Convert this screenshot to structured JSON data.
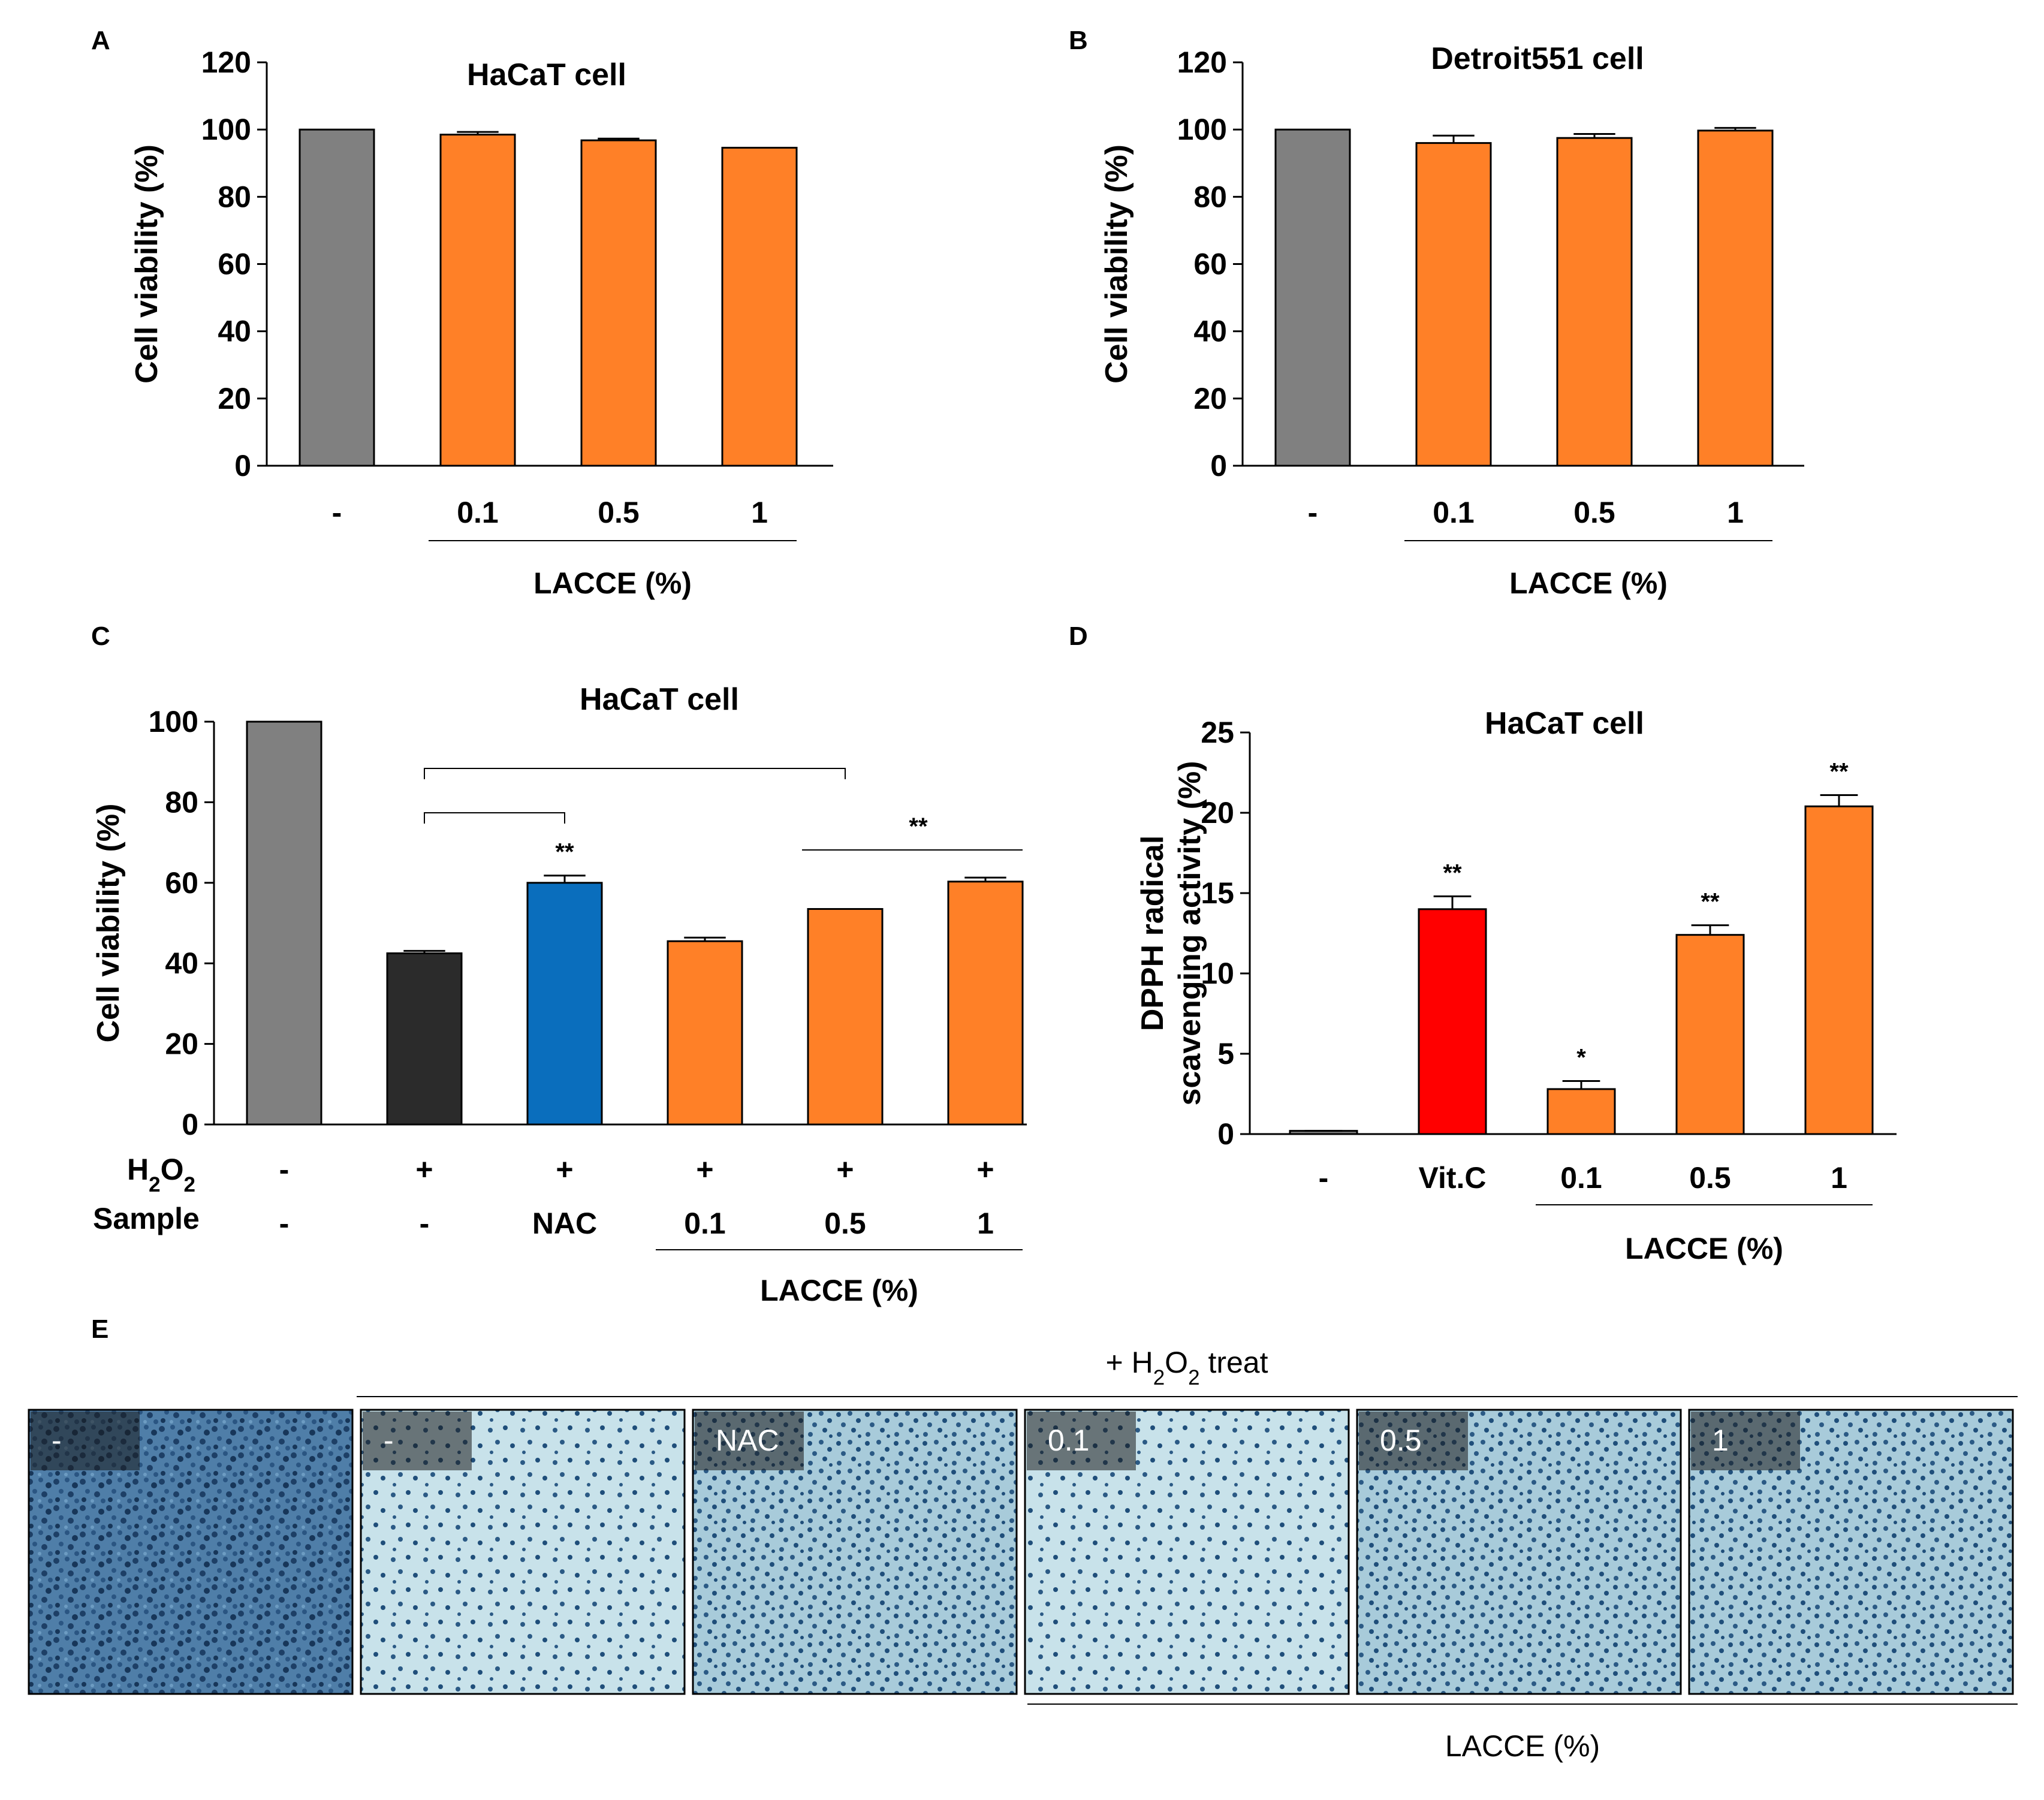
{
  "colors": {
    "control": "#808080",
    "h2o2": "#2b2b2b",
    "nac": "#0a6ebd",
    "vitc": "#ff0000",
    "lacce": "#ff8027",
    "micro_bg": "#8fb9cf",
    "micro_cell": "#1f4e7a"
  },
  "chart_data": [
    {
      "panel": "A",
      "type": "bar",
      "title": "HaCaT cell",
      "ylabel": "Cell viability (%)",
      "ylim": [
        0,
        120
      ],
      "yticks": [
        0,
        20,
        40,
        60,
        80,
        100,
        120
      ],
      "categories": [
        "-",
        "0.1",
        "0.5",
        "1"
      ],
      "values": [
        100,
        98.5,
        96.8,
        94.6
      ],
      "errors": [
        0,
        0.8,
        0.5,
        0
      ],
      "colors": [
        "control",
        "lacce",
        "lacce",
        "lacce"
      ],
      "group_label": "LACCE (%)",
      "group_span": [
        1,
        3
      ]
    },
    {
      "panel": "B",
      "type": "bar",
      "title": "Detroit551 cell",
      "ylabel": "Cell viability (%)",
      "ylim": [
        0,
        120
      ],
      "yticks": [
        0,
        20,
        40,
        60,
        80,
        100,
        120
      ],
      "categories": [
        "-",
        "0.1",
        "0.5",
        "1"
      ],
      "values": [
        100,
        96,
        97.5,
        99.7
      ],
      "errors": [
        0,
        2.2,
        1.2,
        0.8
      ],
      "colors": [
        "control",
        "lacce",
        "lacce",
        "lacce"
      ],
      "group_label": "LACCE (%)",
      "group_span": [
        1,
        3
      ]
    },
    {
      "panel": "C",
      "type": "bar",
      "title": "HaCaT cell",
      "ylabel": "Cell viability (%)",
      "ylim": [
        0,
        100
      ],
      "yticks": [
        0,
        20,
        40,
        60,
        80,
        100
      ],
      "row_labels": {
        "h2o2": "H2O2",
        "sample": "Sample"
      },
      "h2o2_row": [
        "-",
        "+",
        "+",
        "+",
        "+",
        "+"
      ],
      "categories": [
        "-",
        "-",
        "NAC",
        "0.1",
        "0.5",
        "1"
      ],
      "values": [
        100,
        42.5,
        60,
        45.5,
        53.5,
        60.3
      ],
      "errors": [
        0,
        0.6,
        1.8,
        0.9,
        0,
        1.0
      ],
      "colors": [
        "control",
        "h2o2",
        "nac",
        "lacce",
        "lacce",
        "lacce"
      ],
      "annotations": [
        "",
        "",
        "**",
        "",
        "",
        ""
      ],
      "bracket_significance": "**",
      "group_label": "LACCE (%)",
      "group_span": [
        3,
        5
      ]
    },
    {
      "panel": "D",
      "type": "bar",
      "title": "HaCaT cell",
      "ylabel_lines": [
        "DPPH radical",
        "scavenging activity (%)"
      ],
      "ylim": [
        0,
        25
      ],
      "yticks": [
        0,
        5,
        10,
        15,
        20,
        25
      ],
      "categories": [
        "-",
        "Vit.C",
        "0.1",
        "0.5",
        "1"
      ],
      "values": [
        0.2,
        14,
        2.8,
        12.4,
        20.4
      ],
      "errors": [
        0,
        0.8,
        0.5,
        0.6,
        0.7
      ],
      "colors": [
        "control",
        "vitc",
        "lacce",
        "lacce",
        "lacce"
      ],
      "annotations": [
        "",
        "**",
        "*",
        "**",
        "**"
      ],
      "group_label": "LACCE (%)",
      "group_span": [
        2,
        4
      ]
    }
  ],
  "panel_e": {
    "letter": "E",
    "treat_label": "+ H2O2 treat",
    "images": [
      {
        "label": "-",
        "density": "high"
      },
      {
        "label": "-",
        "density": "low"
      },
      {
        "label": "NAC",
        "density": "medium"
      },
      {
        "label": "0.1",
        "density": "low"
      },
      {
        "label": "0.5",
        "density": "medium"
      },
      {
        "label": "1",
        "density": "medium"
      }
    ],
    "group_label": "LACCE (%)"
  }
}
